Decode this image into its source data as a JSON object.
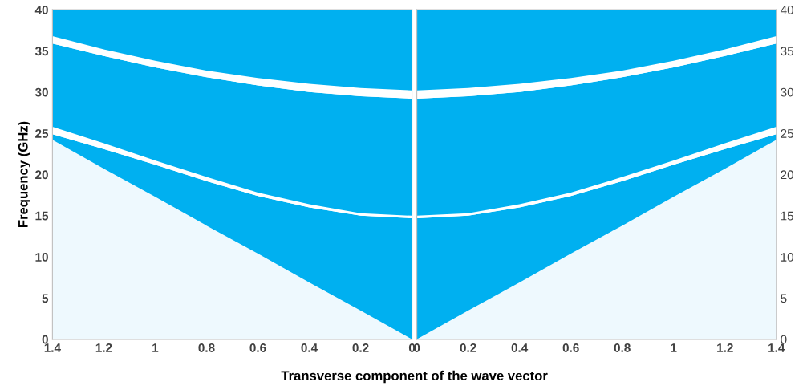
{
  "chart_data": [
    {
      "type": "area",
      "stacked": true,
      "ylabel": "Frequency (GHz)",
      "xlabel": "Transverse component of the wave vector",
      "x": [
        0,
        0.2,
        0.4,
        0.6,
        0.8,
        1.0,
        1.2,
        1.4
      ],
      "xlim": [
        1.4,
        0
      ],
      "xticks": [
        1.4,
        1.2,
        1,
        0.8,
        0.6,
        0.4,
        0.2,
        0
      ],
      "ylim": [
        0,
        40
      ],
      "yticks": [
        0,
        5,
        10,
        15,
        20,
        25,
        30,
        35,
        40
      ],
      "grid": false,
      "legend": false,
      "series": [
        {
          "color": "#eef9fe",
          "values": [
            0,
            3.5,
            6.9,
            10.4,
            13.8,
            17.3,
            20.7,
            24.2
          ]
        },
        {
          "color": "#00b0f0",
          "values": [
            14.7,
            11.5,
            9.1,
            7.0,
            5.4,
            3.9,
            2.4,
            0.7
          ]
        },
        {
          "color": "#ffffff",
          "values": [
            0.3,
            0.3,
            0.4,
            0.4,
            0.5,
            0.5,
            0.7,
            0.9
          ]
        },
        {
          "color": "#00b0f0",
          "values": [
            14.2,
            14.2,
            13.6,
            13.0,
            12.1,
            11.3,
            10.6,
            10.1
          ]
        },
        {
          "color": "#ffffff",
          "values": [
            1.0,
            1.0,
            1.0,
            0.9,
            0.8,
            0.8,
            0.8,
            0.9
          ]
        },
        {
          "color": "#00b0f0",
          "values": [
            9.8,
            9.5,
            9.0,
            8.3,
            7.4,
            6.2,
            4.8,
            3.2
          ]
        }
      ]
    },
    {
      "type": "area",
      "stacked": true,
      "x": [
        0,
        0.2,
        0.4,
        0.6,
        0.8,
        1.0,
        1.2,
        1.4
      ],
      "xlim": [
        0,
        1.4
      ],
      "xticks": [
        0,
        0.2,
        0.4,
        0.6,
        0.8,
        1,
        1.2,
        1.4
      ],
      "ylim": [
        0,
        40
      ],
      "yticks": [
        0,
        5,
        10,
        15,
        20,
        25,
        30,
        35,
        40
      ],
      "grid": false,
      "legend": false,
      "series": [
        {
          "color": "#eef9fe",
          "values": [
            0,
            3.5,
            6.9,
            10.4,
            13.8,
            17.3,
            20.7,
            24.2
          ]
        },
        {
          "color": "#00b0f0",
          "values": [
            14.7,
            11.5,
            9.1,
            7.0,
            5.4,
            3.9,
            2.4,
            0.7
          ]
        },
        {
          "color": "#ffffff",
          "values": [
            0.3,
            0.3,
            0.4,
            0.4,
            0.5,
            0.5,
            0.7,
            0.9
          ]
        },
        {
          "color": "#00b0f0",
          "values": [
            14.2,
            14.2,
            13.6,
            13.0,
            12.1,
            11.3,
            10.6,
            10.1
          ]
        },
        {
          "color": "#ffffff",
          "values": [
            1.0,
            1.0,
            1.0,
            0.9,
            0.8,
            0.8,
            0.8,
            0.9
          ]
        },
        {
          "color": "#00b0f0",
          "values": [
            9.8,
            9.5,
            9.0,
            8.3,
            7.4,
            6.2,
            4.8,
            3.2
          ]
        }
      ]
    }
  ]
}
